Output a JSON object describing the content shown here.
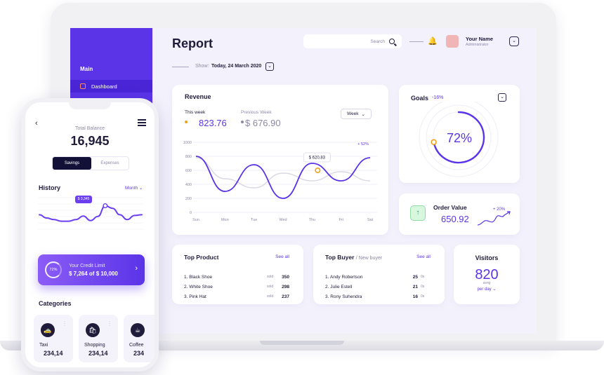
{
  "sidebar": {
    "heading": "Main",
    "items": [
      {
        "label": "Dashboard",
        "icon": "grid-icon"
      }
    ]
  },
  "header": {
    "title": "Report",
    "show_label": "Show:",
    "show_value": "Today, 24 March 2020",
    "search_placeholder": "Search",
    "user_name": "Your Name",
    "user_role": "Administrator"
  },
  "revenue": {
    "title": "Revenue",
    "this_week_label": "This week",
    "this_week_value": "823.76",
    "prev_week_label": "Previous Week",
    "prev_week_value": "$ 676.90",
    "period": "Week",
    "tooltip": "$ 620.83",
    "badge": "+ 52%"
  },
  "chart_data": {
    "type": "line",
    "categories": [
      "Sun",
      "Mon",
      "Tue",
      "Wed",
      "Thu",
      "Fri",
      "Sat"
    ],
    "series": [
      {
        "values": [
          800,
          300,
          680,
          200,
          700,
          450,
          780
        ]
      },
      {
        "values": [
          780,
          480,
          350,
          560,
          450,
          580,
          450
        ]
      }
    ],
    "ylim": [
      0,
      1000
    ],
    "yticks": [
      "1000",
      "800",
      "600",
      "400",
      "200",
      "0"
    ],
    "colors": [
      "#5b34e8",
      "#d9d8e4"
    ]
  },
  "goals": {
    "title": "Goals",
    "delta": "-16%",
    "percent": "72%",
    "progress": 0.72
  },
  "order_value": {
    "title": "Order Value",
    "value": "650.92",
    "delta": "+ 20%"
  },
  "top_product": {
    "title": "Top Product",
    "see_all": "See all",
    "rows": [
      {
        "name": "1. Black Shoe",
        "unit": "sold",
        "value": "350"
      },
      {
        "name": "2. White Shoe",
        "unit": "sold",
        "value": "298"
      },
      {
        "name": "3. Pink Hat",
        "unit": "sold",
        "value": "237"
      }
    ]
  },
  "top_buyer": {
    "title": "Top Buyer",
    "subtitle": "/ New buyer",
    "see_all": "See all",
    "rows": [
      {
        "name": "1. Andy Robertson",
        "unit": "0s",
        "value": "25"
      },
      {
        "name": "2. Julie Estell",
        "unit": "0s",
        "value": "21"
      },
      {
        "name": "3. Rony Suhendra",
        "unit": "0s",
        "value": "16"
      }
    ]
  },
  "visitors": {
    "title": "Visitors",
    "value": "820",
    "avg": "avrg",
    "period": "per day"
  },
  "phone": {
    "balance_label": "Total Balance",
    "balance_value": "16,945",
    "tab_active": "Savings",
    "tab_inactive": "Expenses",
    "history_title": "History",
    "history_period": "Month",
    "history_bubble": "$ 3,345",
    "history_points": [
      60,
      50,
      45,
      40,
      40,
      45,
      56,
      42,
      55,
      88,
      80,
      60,
      45,
      58,
      60
    ],
    "credit_label": "Your Credit Limit",
    "credit_value": "$ 7,264 of $ 10,000",
    "credit_percent": "72%",
    "categories_title": "Categories",
    "categories": [
      {
        "name": "Taxi",
        "value": "234,14",
        "icon": "taxi-icon"
      },
      {
        "name": "Shopping",
        "value": "234,14",
        "icon": "shopping-bag-icon"
      },
      {
        "name": "Coffee",
        "value": "234",
        "icon": "coffee-icon"
      }
    ]
  }
}
